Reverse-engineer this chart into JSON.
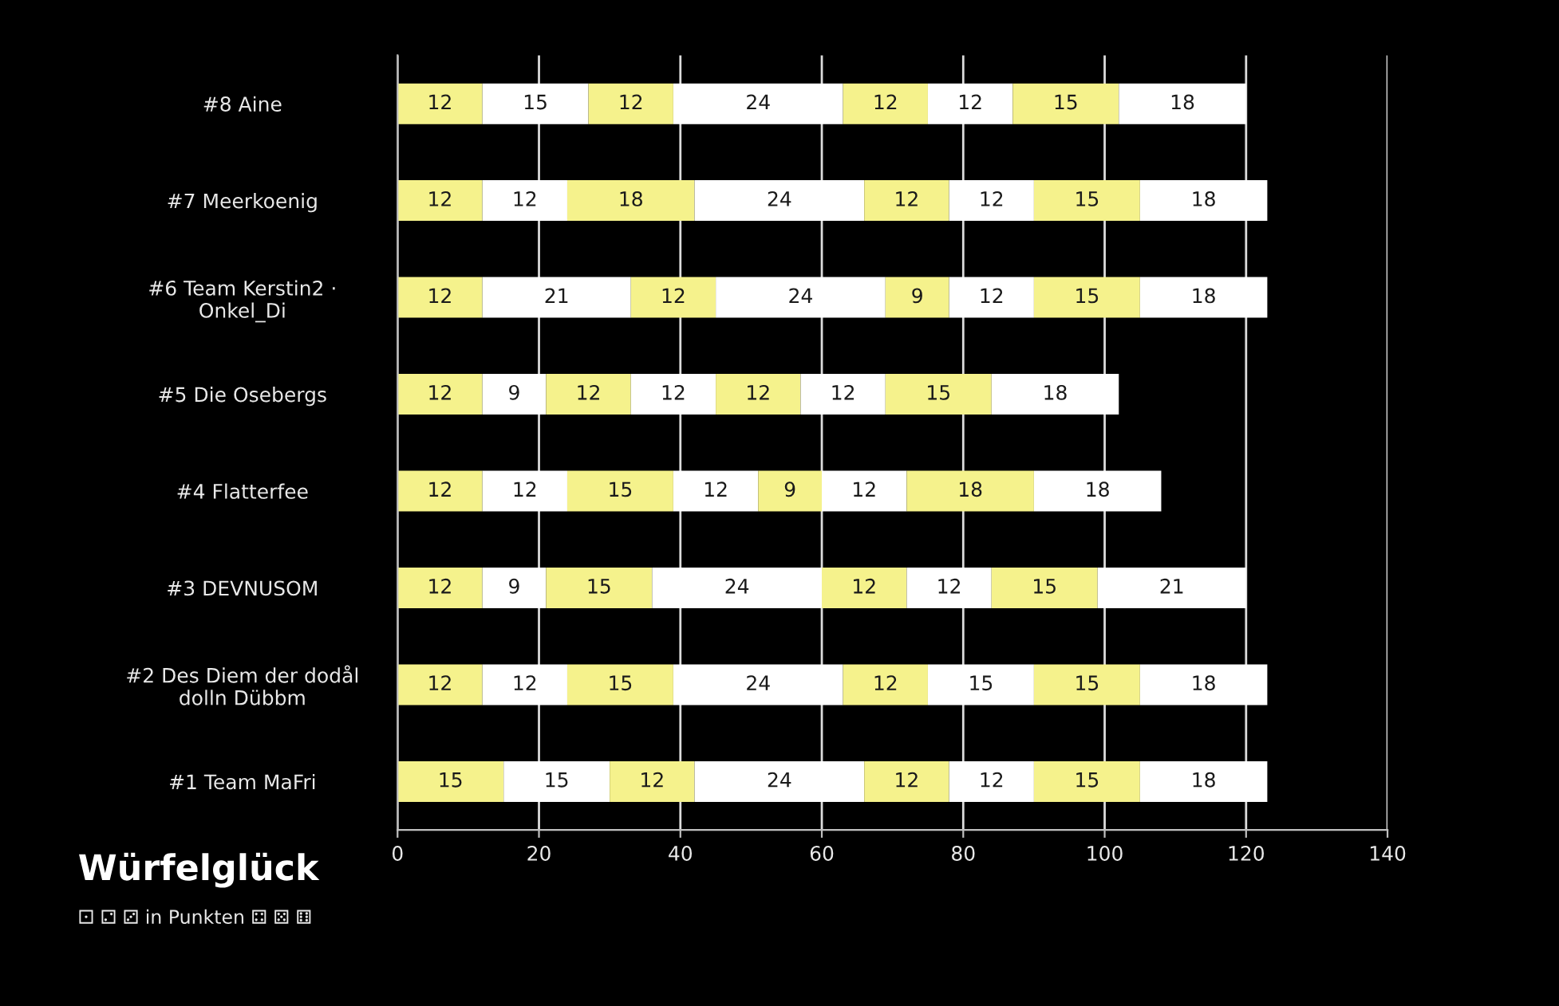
{
  "chart_data": {
    "type": "bar",
    "orientation": "horizontal",
    "stacked": true,
    "data_labels": true,
    "grid": "x",
    "title": "Würfelglück",
    "subtitle": "⚀ ⚁ ⚂ in Punkten ⚃ ⚄ ⚅",
    "categories": [
      "#8 Aine",
      "#7 Meerkoenig",
      "#6 Team Kerstin2 · Onkel_Di",
      "#5 Die Osebergs",
      "#4 Flatterfee",
      "#3 DEVNUSOM",
      "#2 Des Diem der dodål dolln Dübbm",
      "#1 Team MaFri"
    ],
    "xlim": [
      0,
      140
    ],
    "xticks": [
      0,
      20,
      40,
      60,
      80,
      100,
      120,
      140
    ],
    "series": [
      {
        "color": "#f5f28c",
        "values": [
          12,
          12,
          12,
          12,
          12,
          12,
          12,
          15
        ]
      },
      {
        "color": "#ffffff",
        "values": [
          15,
          12,
          21,
          9,
          12,
          9,
          12,
          15
        ]
      },
      {
        "color": "#f5f28c",
        "values": [
          12,
          18,
          12,
          12,
          15,
          15,
          15,
          12
        ]
      },
      {
        "color": "#ffffff",
        "values": [
          24,
          24,
          24,
          12,
          12,
          24,
          24,
          24
        ]
      },
      {
        "color": "#f5f28c",
        "values": [
          12,
          12,
          9,
          12,
          9,
          12,
          12,
          12
        ]
      },
      {
        "color": "#ffffff",
        "values": [
          12,
          12,
          12,
          12,
          12,
          12,
          15,
          12
        ]
      },
      {
        "color": "#f5f28c",
        "values": [
          15,
          15,
          15,
          15,
          18,
          15,
          15,
          15
        ]
      },
      {
        "color": "#ffffff",
        "values": [
          18,
          18,
          18,
          18,
          18,
          21,
          18,
          18
        ]
      }
    ]
  }
}
